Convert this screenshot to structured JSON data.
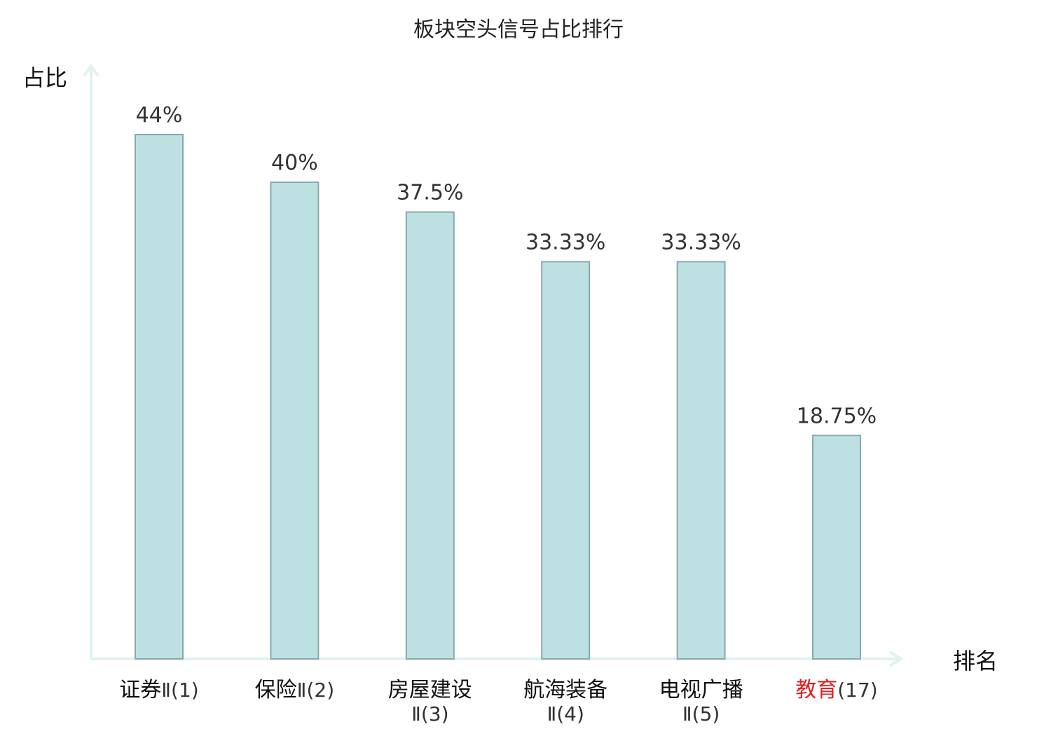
{
  "colors": {
    "bar_fill": "#bde0e3",
    "bar_stroke": "#8aa9aa",
    "axis": "#e0f2ef",
    "highlight": "#e02020",
    "text": "#111111",
    "value_text": "#333333"
  },
  "chart_data": {
    "type": "bar",
    "title": "板块空头信号占比排行",
    "ylabel": "占比",
    "xlabel": "排名",
    "ylim": [
      0,
      50
    ],
    "grid": false,
    "categories": [
      {
        "name": "证券",
        "suffix": "Ⅱ(1)",
        "highlight": false
      },
      {
        "name": "保险",
        "suffix": "Ⅱ(2)",
        "highlight": false
      },
      {
        "name": "房屋建设",
        "suffix": "Ⅱ(3)",
        "highlight": false
      },
      {
        "name": "航海装备",
        "suffix": "Ⅱ(4)",
        "highlight": false
      },
      {
        "name": "电视广播",
        "suffix": "Ⅱ(5)",
        "highlight": false
      },
      {
        "name": "教育",
        "suffix": "(17)",
        "highlight": true
      }
    ],
    "values": [
      44,
      40,
      37.5,
      33.33,
      33.33,
      18.75
    ],
    "value_labels": [
      "44%",
      "40%",
      "37.5%",
      "33.33%",
      "33.33%",
      "18.75%"
    ]
  }
}
